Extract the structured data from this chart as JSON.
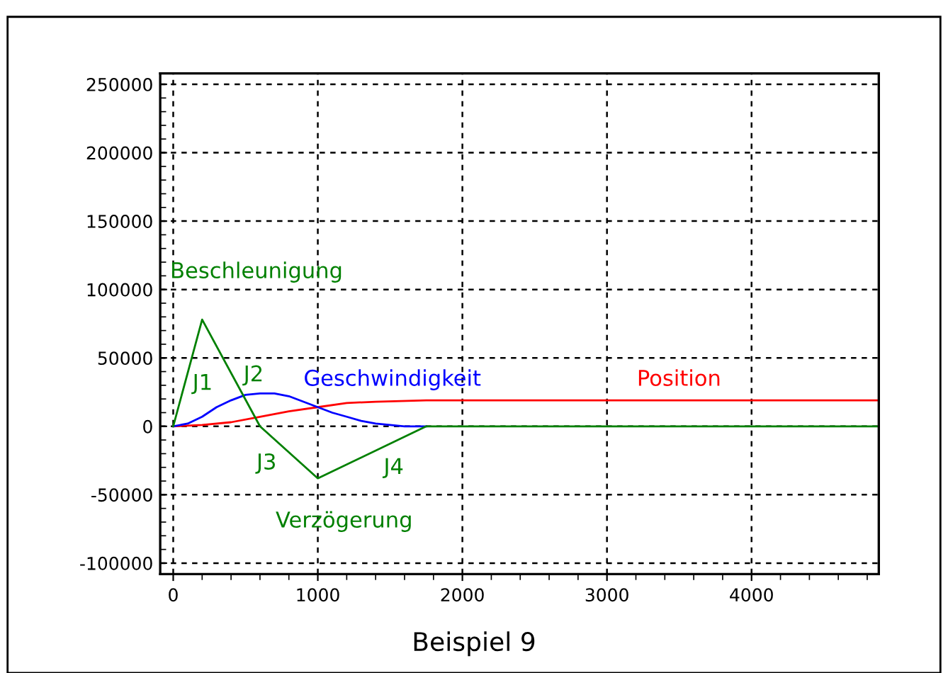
{
  "chart_data": {
    "type": "line",
    "xlim": [
      -90,
      4880
    ],
    "ylim": [
      -108000,
      258000
    ],
    "xticks": [
      0,
      1000,
      2000,
      3000,
      4000
    ],
    "yticks": [
      -100000,
      -50000,
      0,
      50000,
      100000,
      150000,
      200000,
      250000
    ],
    "grid": true,
    "marker": "none",
    "line_style": "solid",
    "series": [
      {
        "name": "Position",
        "color": "#ff0000",
        "x": [
          0,
          200,
          400,
          600,
          800,
          1000,
          1200,
          1400,
          1750,
          4880
        ],
        "values": [
          0,
          1000,
          3000,
          7000,
          11000,
          14000,
          17000,
          18000,
          19000,
          19000
        ]
      },
      {
        "name": "Geschwindigkeit",
        "color": "#0000ff",
        "x": [
          0,
          100,
          200,
          300,
          400,
          500,
          600,
          700,
          800,
          900,
          1000,
          1100,
          1200,
          1300,
          1400,
          1500,
          1600,
          1750
        ],
        "values": [
          0,
          2000,
          7000,
          14000,
          19000,
          23000,
          24000,
          24000,
          22000,
          18000,
          14000,
          10000,
          7000,
          4000,
          2000,
          1000,
          0,
          0
        ]
      },
      {
        "name": "Beschleunigung",
        "color": "#008000",
        "x": [
          0,
          200,
          600,
          1000,
          1750,
          4880
        ],
        "values": [
          0,
          78000,
          0,
          -38000,
          0,
          0
        ]
      }
    ],
    "annotations": [
      "J1",
      "J2",
      "J3",
      "J4",
      "Verzögerung",
      "Beispiel 9"
    ]
  }
}
